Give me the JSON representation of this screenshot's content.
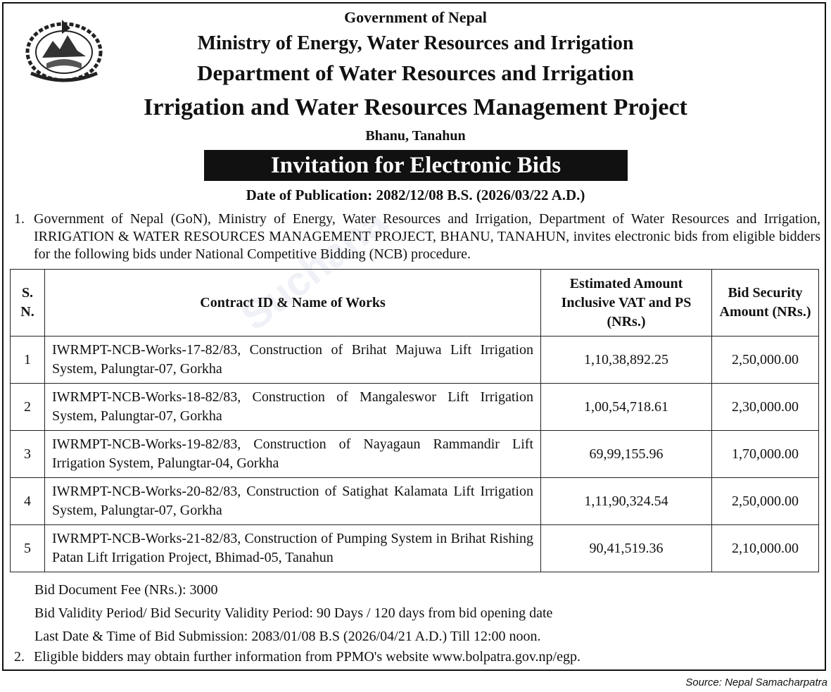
{
  "header": {
    "government": "Government of Nepal",
    "ministry": "Ministry of Energy, Water Resources and Irrigation",
    "department": "Department of Water Resources and Irrigation",
    "project": "Irrigation and Water Resources Management Project",
    "location": "Bhanu, Tanahun",
    "emblem_icon": "nepal-government-emblem"
  },
  "notice": {
    "title": "Invitation for Electronic Bids",
    "publication_date": "Date of Publication: 2082/12/08 B.S. (2026/03/22 A.D.)"
  },
  "paragraph1": {
    "number": "1.",
    "text": "Government of Nepal (GoN), Ministry of Energy, Water Resources and Irrigation, Department of Water Resources and Irrigation, IRRIGATION & WATER RESOURCES MANAGEMENT PROJECT, BHANU, TANAHUN, invites electronic bids from eligible bidders for the following bids under National Competitive Bidding (NCB) procedure."
  },
  "table": {
    "headers": {
      "sn": "S. N.",
      "work": "Contract ID & Name of Works",
      "amount": "Estimated Amount Inclusive VAT and PS (NRs.)",
      "security": "Bid Security Amount (NRs.)"
    },
    "rows": [
      {
        "sn": "1",
        "work": "IWRMPT-NCB-Works-17-82/83, Construction of Brihat Majuwa Lift Irrigation System, Palungtar-07, Gorkha",
        "amount": "1,10,38,892.25",
        "security": "2,50,000.00"
      },
      {
        "sn": "2",
        "work": "IWRMPT-NCB-Works-18-82/83, Construction of Mangaleswor Lift Irrigation System, Palungtar-07, Gorkha",
        "amount": "1,00,54,718.61",
        "security": "2,30,000.00"
      },
      {
        "sn": "3",
        "work": "IWRMPT-NCB-Works-19-82/83, Construction of Nayagaun Rammandir Lift Irrigation System, Palungtar-04, Gorkha",
        "amount": "69,99,155.96",
        "security": "1,70,000.00"
      },
      {
        "sn": "4",
        "work": "IWRMPT-NCB-Works-20-82/83, Construction of Satighat Kalamata Lift Irrigation System, Palungtar-07, Gorkha",
        "amount": "1,11,90,324.54",
        "security": "2,50,000.00"
      },
      {
        "sn": "5",
        "work": "IWRMPT-NCB-Works-21-82/83, Construction of Pumping System in Brihat Rishing Patan Lift Irrigation Project, Bhimad-05, Tanahun",
        "amount": "90,41,519.36",
        "security": "2,10,000.00"
      }
    ]
  },
  "notes": {
    "fee": "Bid Document Fee (NRs.): 3000",
    "validity": "Bid Validity Period/ Bid Security Validity Period: 90 Days / 120 days from bid opening date",
    "deadline": "Last Date & Time of Bid Submission: 2083/01/08 B.S (2026/04/21 A.D.) Till 12:00 noon."
  },
  "paragraph2": {
    "number": "2.",
    "text": "Eligible bidders may obtain further information from PPMO's website www.bolpatra.gov.np/egp."
  },
  "source": "Source: Nepal Samacharpatra",
  "watermark": "Suchana"
}
